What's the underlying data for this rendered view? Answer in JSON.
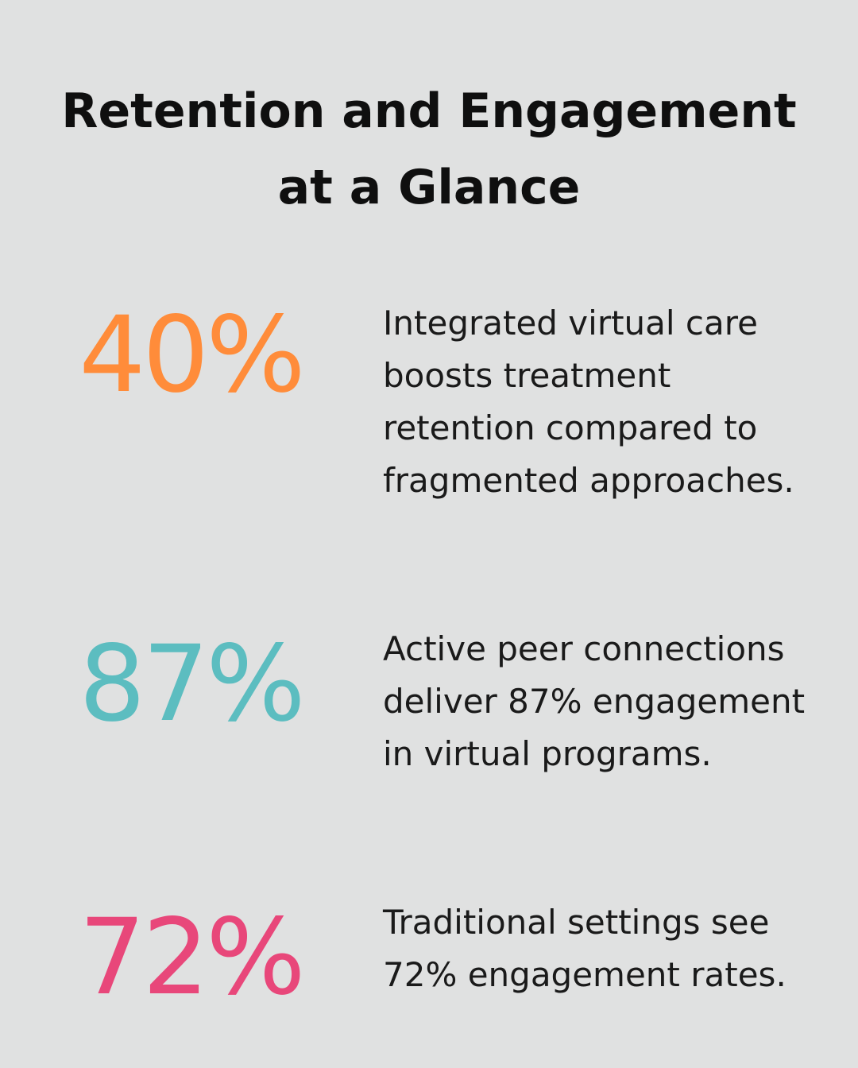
{
  "title": "Retention and Engagement at a Glance",
  "stats": [
    {
      "value": "40%",
      "color": "#ff8c3a",
      "description": "Integrated virtual care boosts treatment retention compared to fragmented approaches."
    },
    {
      "value": "87%",
      "color": "#5cbdc0",
      "description": "Active peer connections deliver 87% engagement in virtual programs."
    },
    {
      "value": "72%",
      "color": "#e8477a",
      "description": "Traditional settings see 72% engagement rates."
    }
  ],
  "colors": {
    "background": "#e0e1e1",
    "text": "#111111"
  }
}
